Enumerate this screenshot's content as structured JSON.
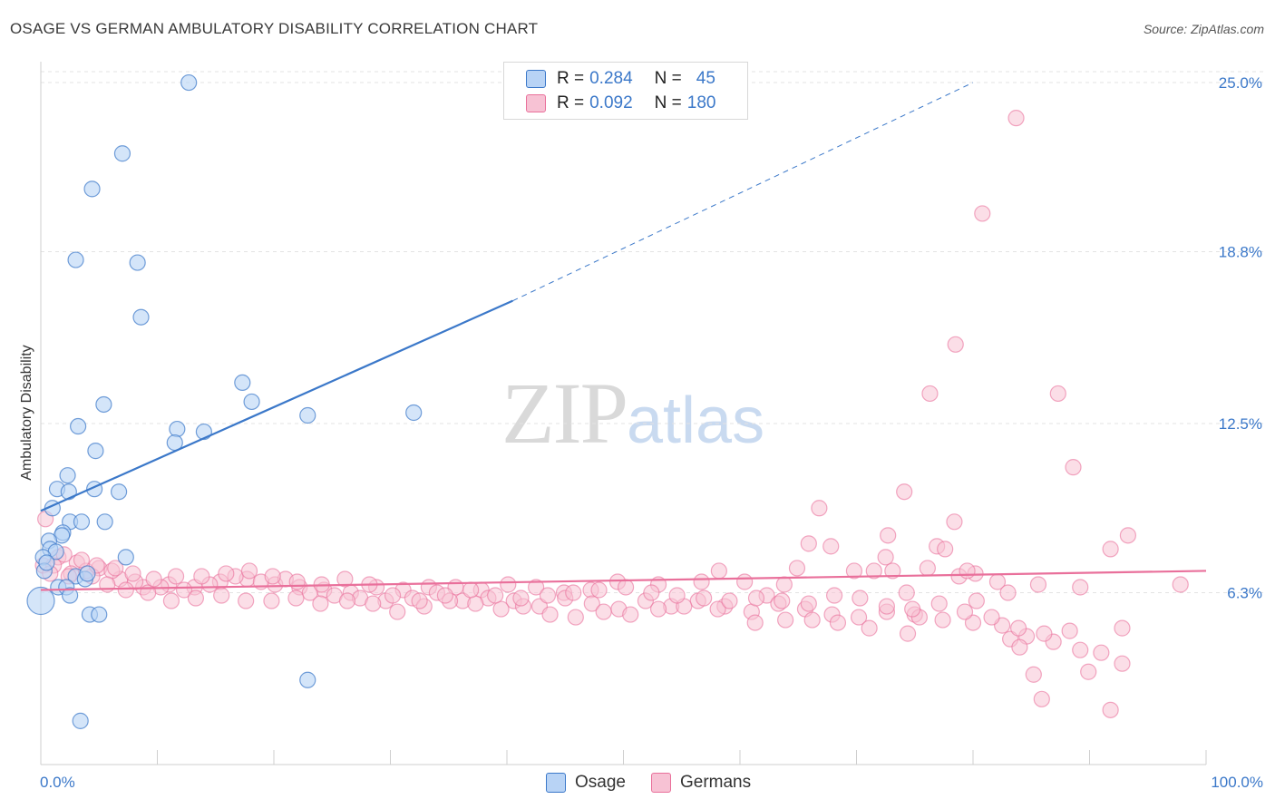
{
  "title": "OSAGE VS GERMAN AMBULATORY DISABILITY CORRELATION CHART",
  "source": "Source: ZipAtlas.com",
  "watermark": {
    "zip": "ZIP",
    "atlas": "atlas"
  },
  "colors": {
    "osage": "#3b78c9",
    "osage_fill": "#b8d3f5",
    "germans": "#e9709b",
    "germans_fill": "#f7c2d4",
    "axis_text": "#3b78c9",
    "grid": "#e3e3e3"
  },
  "legend": {
    "rows": [
      {
        "r_label": "R =",
        "r_value": "0.284",
        "n_label": "N =",
        "n_value": "45"
      },
      {
        "r_label": "R =",
        "r_value": "0.092",
        "n_label": "N =",
        "n_value": "180"
      }
    ]
  },
  "bottom_legend": [
    "Osage",
    "Germans"
  ],
  "chart_data": {
    "type": "scatter",
    "xlabel": "",
    "ylabel": "Ambulatory Disability",
    "xlim": [
      0,
      100
    ],
    "ylim": [
      0,
      25.6
    ],
    "x_tick_labels": [
      "0.0%",
      "100.0%"
    ],
    "y_ticks": [
      6.3,
      12.5,
      18.8,
      25.0
    ],
    "y_tick_labels": [
      "6.3%",
      "12.5%",
      "18.8%",
      "25.0%"
    ],
    "grid": true,
    "legend_position": "top-center",
    "series": [
      {
        "name": "Osage",
        "trend": {
          "x0": 0,
          "y0": 9.3,
          "x1": 40.5,
          "y1": 17.0,
          "dashed_to_x": 80,
          "dashed_to_y": 25.0
        },
        "points": [
          [
            12.7,
            25.0
          ],
          [
            7.0,
            22.4
          ],
          [
            4.4,
            21.1
          ],
          [
            3.0,
            18.5
          ],
          [
            8.3,
            18.4
          ],
          [
            8.6,
            16.4
          ],
          [
            17.3,
            14.0
          ],
          [
            5.4,
            13.2
          ],
          [
            18.1,
            13.3
          ],
          [
            22.9,
            12.8
          ],
          [
            32.0,
            12.9
          ],
          [
            3.2,
            12.4
          ],
          [
            11.7,
            12.3
          ],
          [
            14.0,
            12.2
          ],
          [
            11.5,
            11.8
          ],
          [
            4.7,
            11.5
          ],
          [
            2.3,
            10.6
          ],
          [
            1.4,
            10.1
          ],
          [
            2.4,
            10.0
          ],
          [
            4.6,
            10.1
          ],
          [
            6.7,
            10.0
          ],
          [
            1.0,
            9.4
          ],
          [
            2.5,
            8.9
          ],
          [
            3.5,
            8.9
          ],
          [
            5.5,
            8.9
          ],
          [
            1.9,
            8.5
          ],
          [
            1.8,
            8.4
          ],
          [
            0.7,
            8.2
          ],
          [
            0.8,
            7.9
          ],
          [
            1.3,
            7.8
          ],
          [
            0.2,
            7.6
          ],
          [
            7.3,
            7.6
          ],
          [
            0.3,
            7.1
          ],
          [
            3.0,
            6.9
          ],
          [
            3.8,
            6.8
          ],
          [
            1.5,
            6.5
          ],
          [
            2.2,
            6.5
          ],
          [
            2.5,
            6.2
          ],
          [
            0.0,
            6.0
          ],
          [
            4.2,
            5.5
          ],
          [
            5.0,
            5.5
          ],
          [
            22.9,
            3.1
          ],
          [
            3.4,
            1.6
          ],
          [
            0.5,
            7.4
          ],
          [
            4.0,
            7.0
          ]
        ]
      },
      {
        "name": "Germans",
        "trend": {
          "x0": 0,
          "y0": 6.4,
          "x1": 100,
          "y1": 7.1
        },
        "points": [
          [
            83.7,
            23.7
          ],
          [
            80.8,
            20.2
          ],
          [
            78.5,
            15.4
          ],
          [
            76.3,
            13.6
          ],
          [
            87.3,
            13.6
          ],
          [
            88.6,
            10.9
          ],
          [
            74.1,
            10.0
          ],
          [
            66.8,
            9.4
          ],
          [
            78.4,
            8.9
          ],
          [
            72.7,
            8.4
          ],
          [
            93.3,
            8.4
          ],
          [
            65.9,
            8.1
          ],
          [
            67.8,
            8.0
          ],
          [
            76.9,
            8.0
          ],
          [
            77.6,
            7.9
          ],
          [
            72.5,
            7.6
          ],
          [
            91.8,
            7.9
          ],
          [
            58.2,
            7.1
          ],
          [
            64.9,
            7.2
          ],
          [
            69.8,
            7.1
          ],
          [
            71.5,
            7.1
          ],
          [
            73.1,
            7.1
          ],
          [
            76.1,
            7.2
          ],
          [
            78.8,
            6.9
          ],
          [
            80.2,
            7.0
          ],
          [
            79.5,
            7.1
          ],
          [
            82.1,
            6.7
          ],
          [
            85.6,
            6.6
          ],
          [
            89.2,
            6.5
          ],
          [
            97.8,
            6.6
          ],
          [
            74.3,
            6.3
          ],
          [
            83.0,
            6.3
          ],
          [
            80.3,
            6.0
          ],
          [
            62.3,
            6.2
          ],
          [
            63.8,
            6.6
          ],
          [
            60.4,
            6.7
          ],
          [
            56.7,
            6.7
          ],
          [
            53.0,
            6.6
          ],
          [
            49.5,
            6.7
          ],
          [
            47.2,
            6.4
          ],
          [
            44.9,
            6.3
          ],
          [
            42.5,
            6.5
          ],
          [
            40.1,
            6.6
          ],
          [
            37.8,
            6.4
          ],
          [
            35.6,
            6.5
          ],
          [
            33.3,
            6.5
          ],
          [
            31.1,
            6.4
          ],
          [
            28.8,
            6.5
          ],
          [
            26.6,
            6.3
          ],
          [
            24.3,
            6.4
          ],
          [
            22.2,
            6.5
          ],
          [
            20.1,
            6.6
          ],
          [
            17.7,
            6.8
          ],
          [
            15.4,
            6.7
          ],
          [
            13.2,
            6.5
          ],
          [
            11.0,
            6.6
          ],
          [
            8.8,
            6.5
          ],
          [
            6.8,
            6.8
          ],
          [
            5.0,
            7.2
          ],
          [
            3.1,
            7.4
          ],
          [
            1.5,
            7.6
          ],
          [
            0.4,
            9.0
          ],
          [
            0.2,
            7.3
          ],
          [
            2.6,
            7.0
          ],
          [
            4.4,
            6.9
          ],
          [
            6.1,
            7.1
          ],
          [
            8.1,
            6.7
          ],
          [
            10.3,
            6.5
          ],
          [
            12.3,
            6.4
          ],
          [
            14.5,
            6.6
          ],
          [
            16.7,
            6.9
          ],
          [
            18.9,
            6.7
          ],
          [
            21.0,
            6.8
          ],
          [
            23.1,
            6.3
          ],
          [
            25.2,
            6.2
          ],
          [
            27.4,
            6.1
          ],
          [
            29.6,
            6.0
          ],
          [
            31.9,
            6.1
          ],
          [
            34.0,
            6.3
          ],
          [
            36.2,
            6.0
          ],
          [
            38.4,
            6.1
          ],
          [
            40.6,
            6.0
          ],
          [
            42.8,
            5.8
          ],
          [
            45.0,
            6.1
          ],
          [
            47.3,
            5.9
          ],
          [
            49.6,
            5.7
          ],
          [
            51.9,
            6.0
          ],
          [
            54.1,
            5.8
          ],
          [
            56.4,
            6.0
          ],
          [
            58.7,
            5.8
          ],
          [
            61.0,
            5.6
          ],
          [
            63.3,
            5.9
          ],
          [
            65.6,
            5.7
          ],
          [
            67.9,
            5.5
          ],
          [
            70.2,
            5.4
          ],
          [
            72.6,
            5.6
          ],
          [
            75.0,
            5.5
          ],
          [
            77.4,
            5.3
          ],
          [
            80.0,
            5.2
          ],
          [
            82.5,
            5.1
          ],
          [
            84.6,
            4.7
          ],
          [
            86.9,
            4.5
          ],
          [
            89.2,
            4.2
          ],
          [
            91.0,
            4.1
          ],
          [
            83.2,
            4.6
          ],
          [
            84.0,
            4.3
          ],
          [
            85.2,
            3.3
          ],
          [
            85.9,
            2.4
          ],
          [
            89.9,
            3.4
          ],
          [
            91.8,
            2.0
          ],
          [
            92.8,
            3.7
          ],
          [
            92.8,
            5.0
          ],
          [
            74.4,
            4.8
          ],
          [
            75.4,
            5.4
          ],
          [
            71.1,
            5.0
          ],
          [
            68.4,
            5.2
          ],
          [
            66.2,
            5.3
          ],
          [
            63.9,
            5.3
          ],
          [
            61.3,
            5.2
          ],
          [
            58.1,
            5.7
          ],
          [
            55.2,
            5.8
          ],
          [
            53.0,
            5.7
          ],
          [
            50.6,
            5.5
          ],
          [
            48.3,
            5.6
          ],
          [
            45.9,
            5.4
          ],
          [
            43.7,
            5.5
          ],
          [
            41.4,
            5.8
          ],
          [
            39.5,
            5.7
          ],
          [
            37.3,
            5.9
          ],
          [
            35.1,
            6.0
          ],
          [
            32.9,
            5.8
          ],
          [
            30.6,
            5.6
          ],
          [
            28.5,
            5.9
          ],
          [
            26.3,
            6.0
          ],
          [
            24.0,
            5.9
          ],
          [
            21.9,
            6.1
          ],
          [
            19.8,
            6.0
          ],
          [
            17.6,
            6.0
          ],
          [
            15.5,
            6.2
          ],
          [
            13.3,
            6.1
          ],
          [
            11.2,
            6.0
          ],
          [
            9.2,
            6.3
          ],
          [
            7.3,
            6.4
          ],
          [
            5.7,
            6.6
          ],
          [
            3.9,
            7.1
          ],
          [
            2.4,
            6.9
          ],
          [
            1.1,
            7.3
          ],
          [
            0.8,
            7.0
          ],
          [
            2.0,
            7.7
          ],
          [
            3.5,
            7.5
          ],
          [
            4.8,
            7.3
          ],
          [
            6.4,
            7.2
          ],
          [
            7.9,
            7.0
          ],
          [
            9.7,
            6.8
          ],
          [
            11.6,
            6.9
          ],
          [
            13.8,
            6.9
          ],
          [
            15.9,
            7.0
          ],
          [
            17.9,
            7.1
          ],
          [
            19.9,
            6.9
          ],
          [
            22.0,
            6.7
          ],
          [
            24.1,
            6.6
          ],
          [
            26.1,
            6.8
          ],
          [
            28.2,
            6.6
          ],
          [
            30.2,
            6.2
          ],
          [
            32.5,
            6.0
          ],
          [
            34.7,
            6.2
          ],
          [
            36.9,
            6.4
          ],
          [
            39.0,
            6.2
          ],
          [
            41.2,
            6.1
          ],
          [
            43.5,
            6.2
          ],
          [
            45.7,
            6.3
          ],
          [
            47.9,
            6.4
          ],
          [
            50.2,
            6.5
          ],
          [
            52.4,
            6.3
          ],
          [
            54.6,
            6.2
          ],
          [
            56.9,
            6.1
          ],
          [
            59.1,
            6.0
          ],
          [
            61.4,
            6.1
          ],
          [
            63.6,
            6.0
          ],
          [
            65.9,
            5.9
          ],
          [
            68.1,
            6.2
          ],
          [
            70.3,
            6.1
          ],
          [
            72.6,
            5.8
          ],
          [
            74.8,
            5.7
          ],
          [
            77.1,
            5.9
          ],
          [
            79.3,
            5.6
          ],
          [
            81.6,
            5.4
          ],
          [
            83.9,
            5.0
          ],
          [
            86.1,
            4.8
          ],
          [
            88.3,
            4.9
          ]
        ]
      }
    ]
  }
}
